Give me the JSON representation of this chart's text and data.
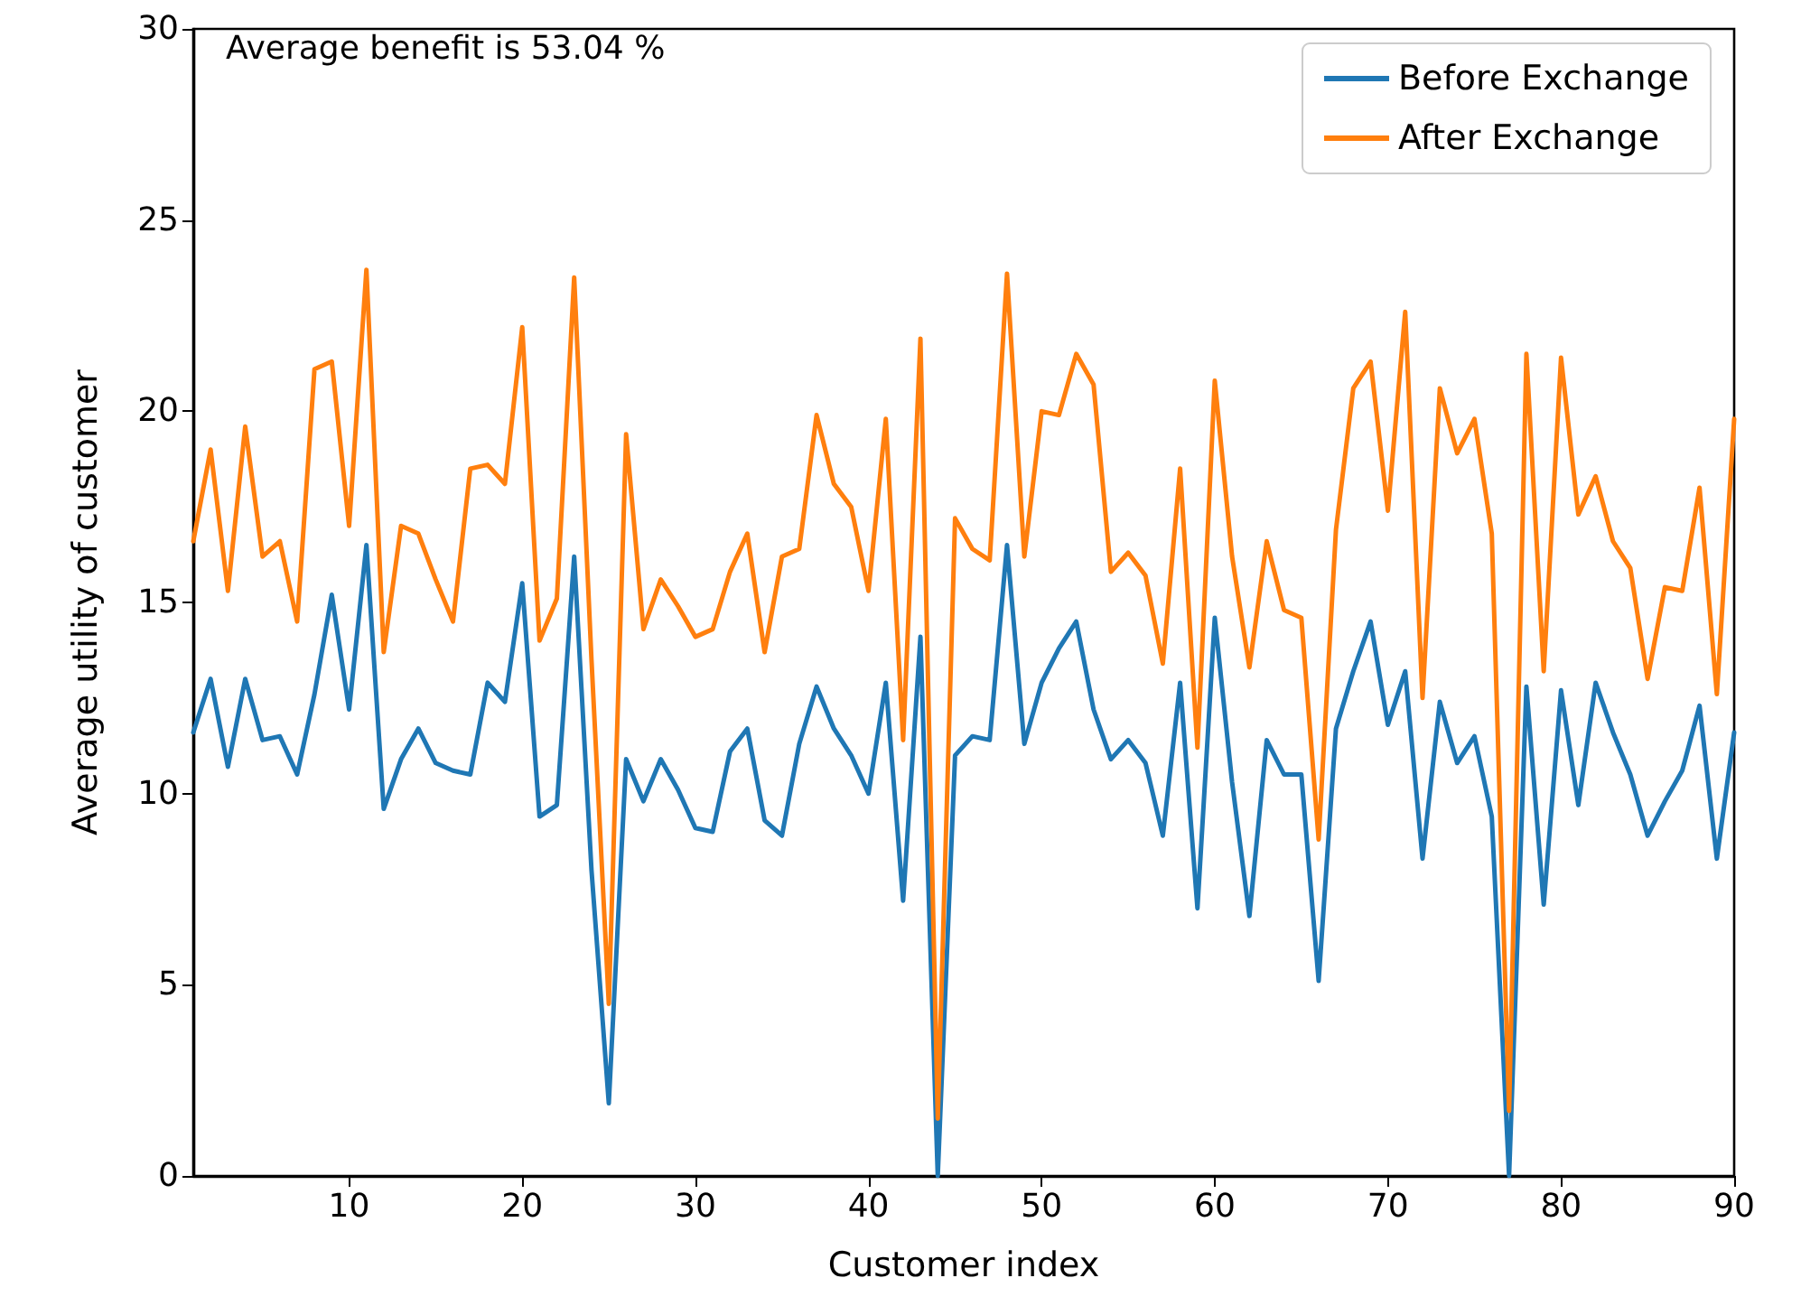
{
  "chart_data": {
    "type": "line",
    "xlabel": "Customer index",
    "ylabel": "Average utility of customer",
    "annotations": [
      "Average benefit is 53.04 %"
    ],
    "x": [
      1,
      2,
      3,
      4,
      5,
      6,
      7,
      8,
      9,
      10,
      11,
      12,
      13,
      14,
      15,
      16,
      17,
      18,
      19,
      20,
      21,
      22,
      23,
      24,
      25,
      26,
      27,
      28,
      29,
      30,
      31,
      32,
      33,
      34,
      35,
      36,
      37,
      38,
      39,
      40,
      41,
      42,
      43,
      44,
      45,
      46,
      47,
      48,
      49,
      50,
      51,
      52,
      53,
      54,
      55,
      56,
      57,
      58,
      59,
      60,
      61,
      62,
      63,
      64,
      65,
      66,
      67,
      68,
      69,
      70,
      71,
      72,
      73,
      74,
      75,
      76,
      77,
      78,
      79,
      80,
      81,
      82,
      83,
      84,
      85,
      86,
      87,
      88,
      89,
      90
    ],
    "series": [
      {
        "name": "Before Exchange",
        "color": "#1f77b4",
        "values": [
          11.6,
          13.0,
          10.7,
          13.0,
          11.4,
          11.5,
          10.5,
          12.6,
          15.2,
          12.2,
          16.5,
          9.6,
          10.9,
          11.7,
          10.8,
          10.6,
          10.5,
          12.9,
          12.4,
          15.5,
          9.4,
          9.7,
          16.2,
          8.0,
          1.9,
          10.9,
          9.8,
          10.9,
          10.1,
          9.1,
          9.0,
          11.1,
          11.7,
          9.3,
          8.9,
          11.3,
          12.8,
          11.7,
          11.0,
          10.0,
          12.9,
          7.2,
          14.1,
          0,
          11.0,
          11.5,
          11.4,
          16.5,
          11.3,
          12.9,
          13.8,
          14.5,
          12.2,
          10.9,
          11.4,
          10.8,
          8.9,
          12.9,
          7.0,
          14.6,
          10.3,
          6.8,
          11.4,
          10.5,
          10.5,
          5.1,
          11.7,
          13.2,
          14.5,
          11.8,
          13.2,
          8.3,
          12.4,
          10.8,
          11.5,
          9.4,
          0,
          12.8,
          7.1,
          12.7,
          9.7,
          12.9,
          11.6,
          10.5,
          8.9,
          9.8,
          10.6,
          12.3,
          8.3,
          11.6
        ]
      },
      {
        "name": "After Exchange",
        "color": "#ff7f0e",
        "values": [
          16.6,
          19.0,
          15.3,
          19.6,
          16.2,
          16.6,
          14.5,
          21.1,
          21.3,
          17.0,
          23.7,
          13.7,
          17.0,
          16.8,
          15.6,
          14.5,
          18.5,
          18.6,
          18.1,
          22.2,
          14.0,
          15.1,
          23.5,
          13.5,
          4.5,
          19.4,
          14.3,
          15.6,
          14.9,
          14.1,
          14.3,
          15.8,
          16.8,
          13.7,
          16.2,
          16.4,
          19.9,
          18.1,
          17.5,
          15.3,
          19.8,
          11.4,
          21.9,
          1.5,
          17.2,
          16.4,
          16.1,
          23.6,
          16.2,
          20.0,
          19.9,
          21.5,
          20.7,
          15.8,
          16.3,
          15.7,
          13.4,
          18.5,
          11.2,
          20.8,
          16.2,
          13.3,
          16.6,
          14.8,
          14.6,
          8.8,
          16.9,
          20.6,
          21.3,
          17.4,
          22.6,
          12.5,
          20.6,
          18.9,
          19.8,
          16.8,
          1.7,
          21.5,
          13.2,
          21.4,
          17.3,
          18.3,
          16.6,
          15.9,
          13.0,
          15.4,
          15.3,
          18.0,
          12.6,
          19.8
        ]
      }
    ],
    "xlim": [
      1,
      90
    ],
    "xticks": [
      10,
      20,
      30,
      40,
      50,
      60,
      70,
      80,
      90
    ],
    "ylim": [
      0,
      30
    ],
    "yticks": [
      0,
      5,
      10,
      15,
      20,
      25,
      30
    ],
    "grid": false,
    "legend": "top right",
    "marker": "none",
    "line_style": "solid"
  }
}
